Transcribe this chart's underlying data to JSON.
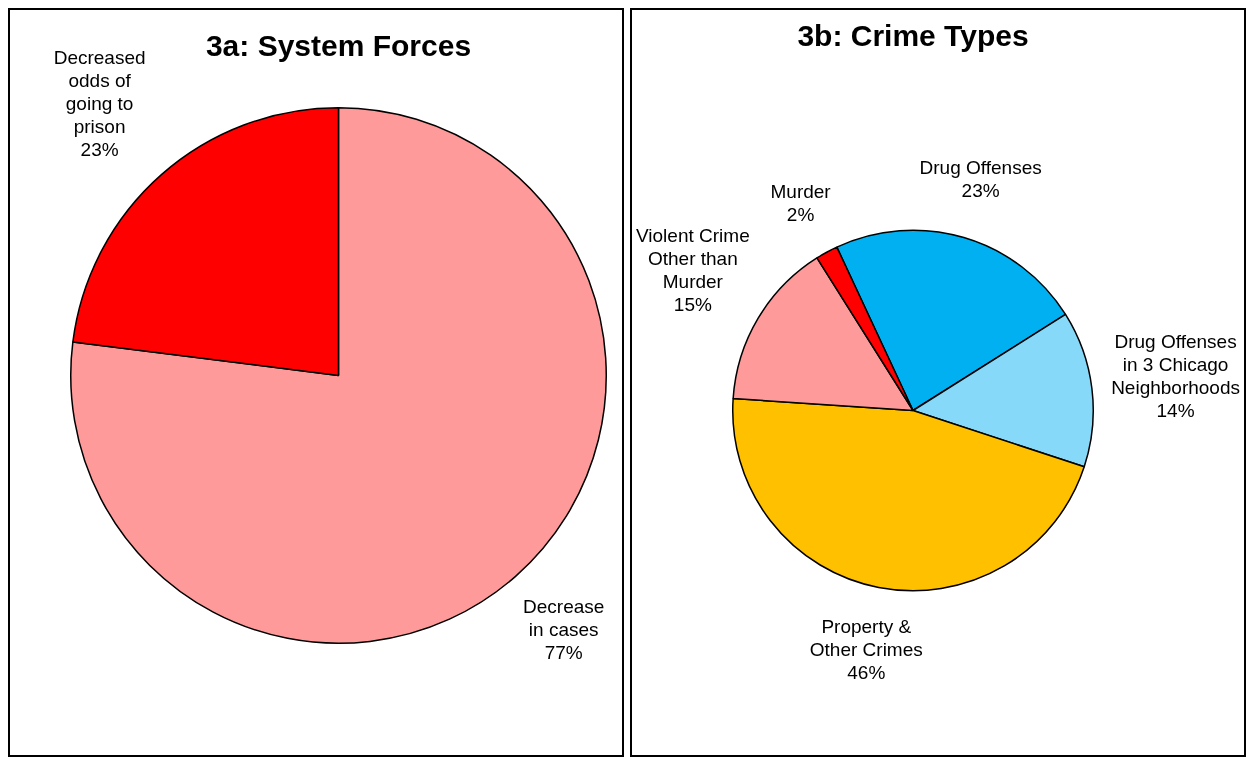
{
  "chart_data": [
    {
      "type": "pie",
      "title": "3a: System Forces",
      "categories": [
        "Decrease in cases",
        "Decreased odds of going to prison"
      ],
      "values": [
        77,
        23
      ],
      "value_labels": [
        "77%",
        "23%"
      ],
      "colors": [
        "#ff9a9a",
        "#ff0000"
      ]
    },
    {
      "type": "pie",
      "title": "3b: Crime Types",
      "categories": [
        "Drug Offenses",
        "Drug Offenses in 3 Chicago Neighborhoods",
        "Property & Other Crimes",
        "Violent Crime Other than Murder",
        "Murder"
      ],
      "values": [
        23,
        14,
        46,
        15,
        2
      ],
      "value_labels": [
        "23%",
        "14%",
        "46%",
        "15%",
        "2%"
      ],
      "colors": [
        "#00b0f0",
        "#86d9f8",
        "#ffc000",
        "#ff9a9a",
        "#ff0000"
      ]
    }
  ]
}
